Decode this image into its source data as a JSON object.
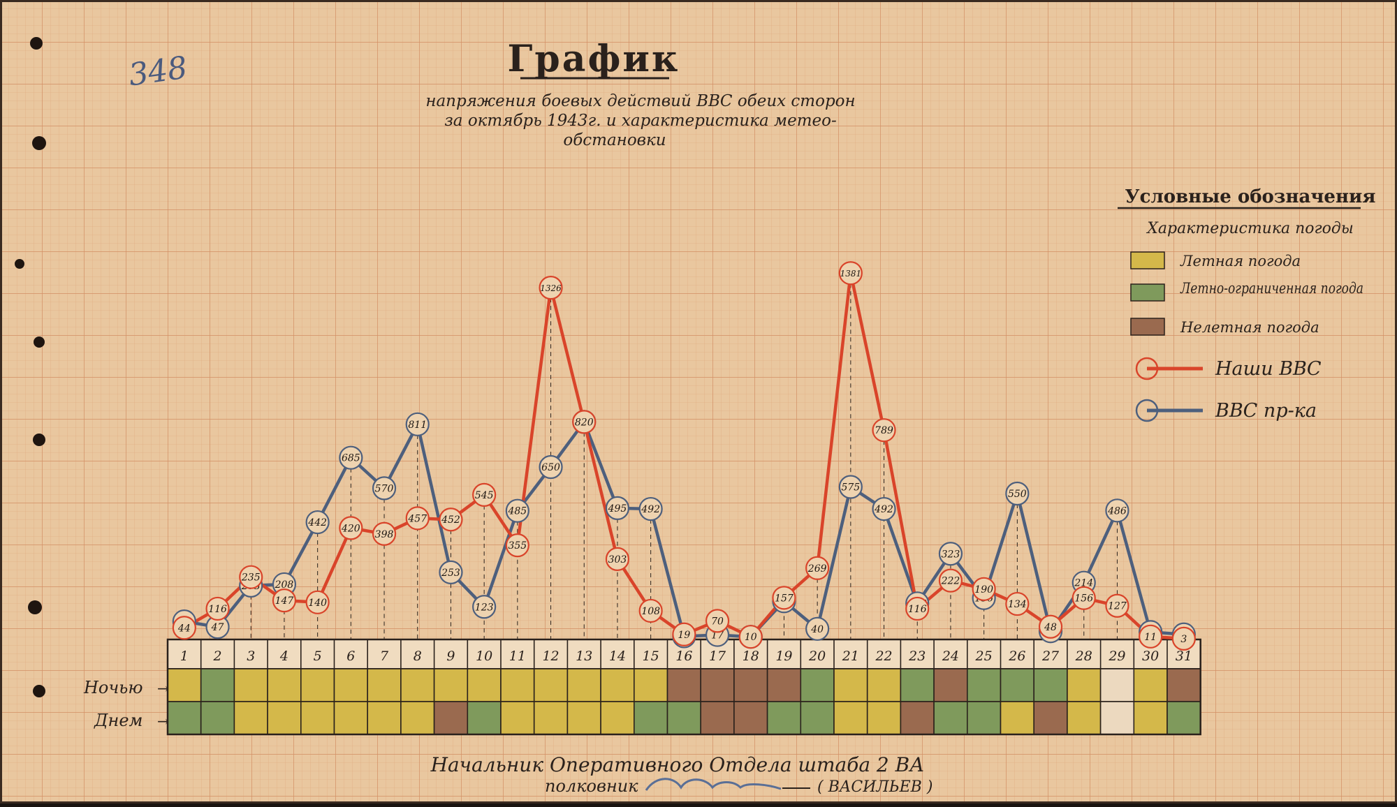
{
  "archive_number": "348",
  "title": "График",
  "subtitle_lines": [
    "напряжения боевых действий ВВС обеих сторон",
    "за октябрь 1943г. и характеристика метео-",
    "обстановки"
  ],
  "legend": {
    "heading": "Условные обозначения",
    "weather_heading": "Характеристика погоды",
    "weather_items": [
      {
        "key": "flying",
        "label": "Летная погода",
        "color": "#d4b84a"
      },
      {
        "key": "limited",
        "label": "Летно-ограниченная погода",
        "color": "#7f9a5c"
      },
      {
        "key": "nonflying",
        "label": "Нелетная погода",
        "color": "#9a6a4f"
      }
    ],
    "series_items": [
      {
        "key": "ours",
        "label": "Наши ВВС",
        "color": "#d9442a"
      },
      {
        "key": "enemy",
        "label": "ВВС пр-ка",
        "color": "#4d5f7d"
      }
    ]
  },
  "weather_rows": {
    "night_label": "Ночью",
    "day_label": "Днем"
  },
  "signature": {
    "line1": "Начальник Оперативного Отдела штаба 2 ВА",
    "line2": "полковник",
    "name": "( ВАСИЛЬЕВ )"
  },
  "colors": {
    "paper": "#e9c79f",
    "grid_minor": "#e3b48b",
    "grid_major": "#d89468",
    "ink": "#2a211c",
    "blank_cell": "#ecd9bf"
  },
  "chart_data": {
    "type": "line",
    "title": "График",
    "xlabel": "",
    "ylabel": "",
    "ylim": [
      0,
      1400
    ],
    "grid": true,
    "legend_position": "right",
    "x": [
      1,
      2,
      3,
      4,
      5,
      6,
      7,
      8,
      9,
      10,
      11,
      12,
      13,
      14,
      15,
      16,
      17,
      18,
      19,
      20,
      21,
      22,
      23,
      24,
      25,
      26,
      27,
      28,
      29,
      30,
      31
    ],
    "series": [
      {
        "name": "Наши ВВС",
        "color": "#d9442a",
        "values": [
          44,
          116,
          235,
          147,
          140,
          420,
          398,
          457,
          452,
          545,
          355,
          1326,
          820,
          303,
          108,
          19,
          70,
          10,
          157,
          269,
          1381,
          789,
          116,
          222,
          190,
          134,
          48,
          156,
          127,
          11,
          3
        ]
      },
      {
        "name": "ВВС пр-ка",
        "color": "#4d5f7d",
        "values": [
          68,
          47,
          203,
          208,
          442,
          685,
          570,
          811,
          253,
          123,
          485,
          650,
          820,
          495,
          492,
          12,
          17,
          10,
          144,
          40,
          575,
          492,
          136,
          323,
          156,
          550,
          31,
          214,
          486,
          28,
          19
        ]
      }
    ],
    "weather": {
      "night": [
        "flying",
        "limited",
        "flying",
        "flying",
        "flying",
        "flying",
        "flying",
        "flying",
        "flying",
        "flying",
        "flying",
        "flying",
        "flying",
        "flying",
        "flying",
        "nonflying",
        "nonflying",
        "nonflying",
        "nonflying",
        "limited",
        "flying",
        "flying",
        "limited",
        "nonflying",
        "limited",
        "limited",
        "limited",
        "flying",
        "blank",
        "flying",
        "nonflying"
      ],
      "day": [
        "limited",
        "limited",
        "flying",
        "flying",
        "flying",
        "flying",
        "flying",
        "flying",
        "nonflying",
        "limited",
        "flying",
        "flying",
        "flying",
        "flying",
        "limited",
        "limited",
        "nonflying",
        "nonflying",
        "limited",
        "limited",
        "flying",
        "flying",
        "nonflying",
        "limited",
        "limited",
        "flying",
        "nonflying",
        "flying",
        "blank",
        "flying",
        "limited"
      ]
    }
  }
}
